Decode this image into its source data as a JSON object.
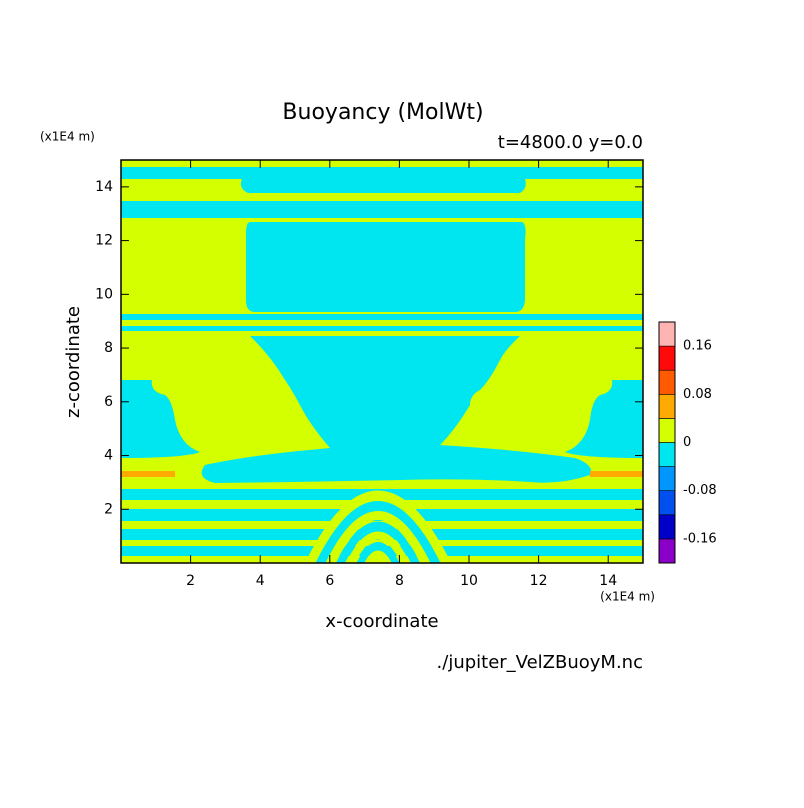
{
  "chart_data": {
    "type": "contour",
    "title": "Buoyancy (MolWt)",
    "subtitle": "t=4800.0 y=0.0",
    "x_label": "x-coordinate",
    "y_label": "z-coordinate",
    "x_units": "(x1E4 m)",
    "y_units": "(x1E4 m)",
    "source": "./jupiter_VelZBuoyM.nc",
    "xlim": [
      0,
      15
    ],
    "xticks": [
      2,
      4,
      6,
      8,
      10,
      12,
      14
    ],
    "ylim": [
      0,
      15
    ],
    "yticks": [
      2,
      4,
      6,
      8,
      10,
      12,
      14
    ],
    "levels": [
      -0.2,
      -0.16,
      -0.12,
      -0.08,
      -0.04,
      0,
      0.04,
      0.08,
      0.12,
      0.16,
      0.2
    ],
    "colors": [
      "#8a00c8",
      "#0000c8",
      "#0050f0",
      "#0096ff",
      "#00e6f0",
      "#d4ff00",
      "#ffaa00",
      "#ff5a00",
      "#ff0a0a",
      "#ffb4b4"
    ],
    "colorbar_ticks": [
      -0.16,
      -0.08,
      0,
      0.08,
      0.16
    ]
  }
}
